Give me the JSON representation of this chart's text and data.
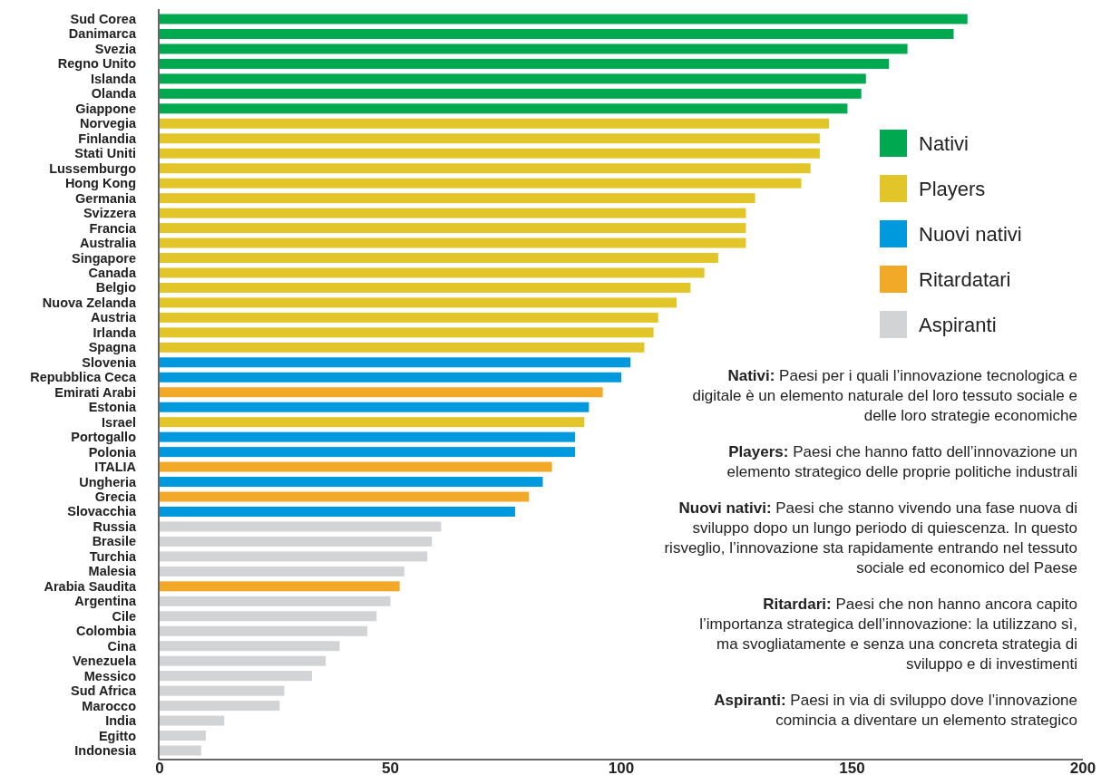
{
  "chart_data": {
    "type": "bar",
    "orientation": "horizontal",
    "categories": [
      "Sud Corea",
      "Danimarca",
      "Svezia",
      "Regno Unito",
      "Islanda",
      "Olanda",
      "Giappone",
      "Norvegia",
      "Finlandia",
      "Stati Uniti",
      "Lussemburgo",
      "Hong Kong",
      "Germania",
      "Svizzera",
      "Francia",
      "Australia",
      "Singapore",
      "Canada",
      "Belgio",
      "Nuova Zelanda",
      "Austria",
      "Irlanda",
      "Spagna",
      "Slovenia",
      "Repubblica Ceca",
      "Emirati Arabi",
      "Estonia",
      "Israel",
      "Portogallo",
      "Polonia",
      "ITALIA",
      "Ungheria",
      "Grecia",
      "Slovacchia",
      "Russia",
      "Brasile",
      "Turchia",
      "Malesia",
      "Arabia Saudita",
      "Argentina",
      "Cile",
      "Colombia",
      "Cina",
      "Venezuela",
      "Messico",
      "Sud Africa",
      "Marocco",
      "India",
      "Egitto",
      "Indonesia"
    ],
    "series": [
      {
        "name": "Nativi",
        "color": "#00a94f",
        "values": [
          175,
          172,
          162,
          158,
          153,
          152,
          149,
          null,
          null,
          null,
          null,
          null,
          null,
          null,
          null,
          null,
          null,
          null,
          null,
          null,
          null,
          null,
          null,
          null,
          null,
          null,
          null,
          null,
          null,
          null,
          null,
          null,
          null,
          null,
          null,
          null,
          null,
          null,
          null,
          null,
          null,
          null,
          null,
          null,
          null,
          null,
          null,
          null,
          null,
          null
        ]
      },
      {
        "name": "Players",
        "color": "#e2c529",
        "values": [
          null,
          null,
          null,
          null,
          null,
          null,
          null,
          145,
          143,
          143,
          141,
          139,
          129,
          127,
          127,
          127,
          121,
          118,
          115,
          112,
          108,
          107,
          105,
          null,
          null,
          null,
          null,
          92,
          null,
          null,
          null,
          null,
          null,
          null,
          null,
          null,
          null,
          null,
          null,
          null,
          null,
          null,
          null,
          null,
          null,
          null,
          null,
          null,
          null,
          null
        ]
      },
      {
        "name": "Nuovi nativi",
        "color": "#0099dd",
        "values": [
          null,
          null,
          null,
          null,
          null,
          null,
          null,
          null,
          null,
          null,
          null,
          null,
          null,
          null,
          null,
          null,
          null,
          null,
          null,
          null,
          null,
          null,
          null,
          102,
          100,
          null,
          93,
          null,
          90,
          90,
          null,
          83,
          null,
          77,
          null,
          null,
          null,
          null,
          null,
          null,
          null,
          null,
          null,
          null,
          null,
          null,
          null,
          null,
          null,
          null
        ]
      },
      {
        "name": "Ritardatari",
        "color": "#f2a928",
        "values": [
          null,
          null,
          null,
          null,
          null,
          null,
          null,
          null,
          null,
          null,
          null,
          null,
          null,
          null,
          null,
          null,
          null,
          null,
          null,
          null,
          null,
          null,
          null,
          null,
          null,
          96,
          null,
          null,
          null,
          null,
          85,
          null,
          80,
          null,
          null,
          null,
          null,
          null,
          52,
          null,
          null,
          null,
          null,
          null,
          null,
          null,
          null,
          null,
          null,
          null
        ]
      },
      {
        "name": "Aspiranti",
        "color": "#d1d3d4",
        "values": [
          null,
          null,
          null,
          null,
          null,
          null,
          null,
          null,
          null,
          null,
          null,
          null,
          null,
          null,
          null,
          null,
          null,
          null,
          null,
          null,
          null,
          null,
          null,
          null,
          null,
          null,
          null,
          null,
          null,
          null,
          null,
          null,
          null,
          null,
          61,
          59,
          58,
          53,
          null,
          50,
          47,
          45,
          39,
          36,
          33,
          27,
          26,
          14,
          10,
          9
        ]
      }
    ],
    "xlim": [
      0,
      200
    ],
    "xticks": [
      0,
      50,
      100,
      150,
      200
    ],
    "grid": false,
    "legend": "right",
    "annotations": [
      "Nativi: Paesi per i quali l’innovazione tecnologica e digitale è un elemento naturale del loro tessuto sociale e delle loro strategie economiche",
      "Players: Paesi che hanno fatto dell’innovazione un elemento strategico delle proprie politiche industrali",
      "Nuovi nativi: Paesi che stanno vivendo una fase nuova di sviluppo dopo un lungo periodo di quiescenza. In questo risveglio, l’innovazione sta rapidamente entrando nel tessuto sociale ed economico del Paese",
      "Ritardari: Paesi che non hanno ancora capito l’importanza strategica dell’innovazione: la utilizzano sì, ma svogliatamente e senza una concreta strategia di sviluppo e di investimenti",
      "Aspiranti: Paesi in via di sviluppo dove l’innovazione comincia a diventare un elemento strategico"
    ]
  }
}
